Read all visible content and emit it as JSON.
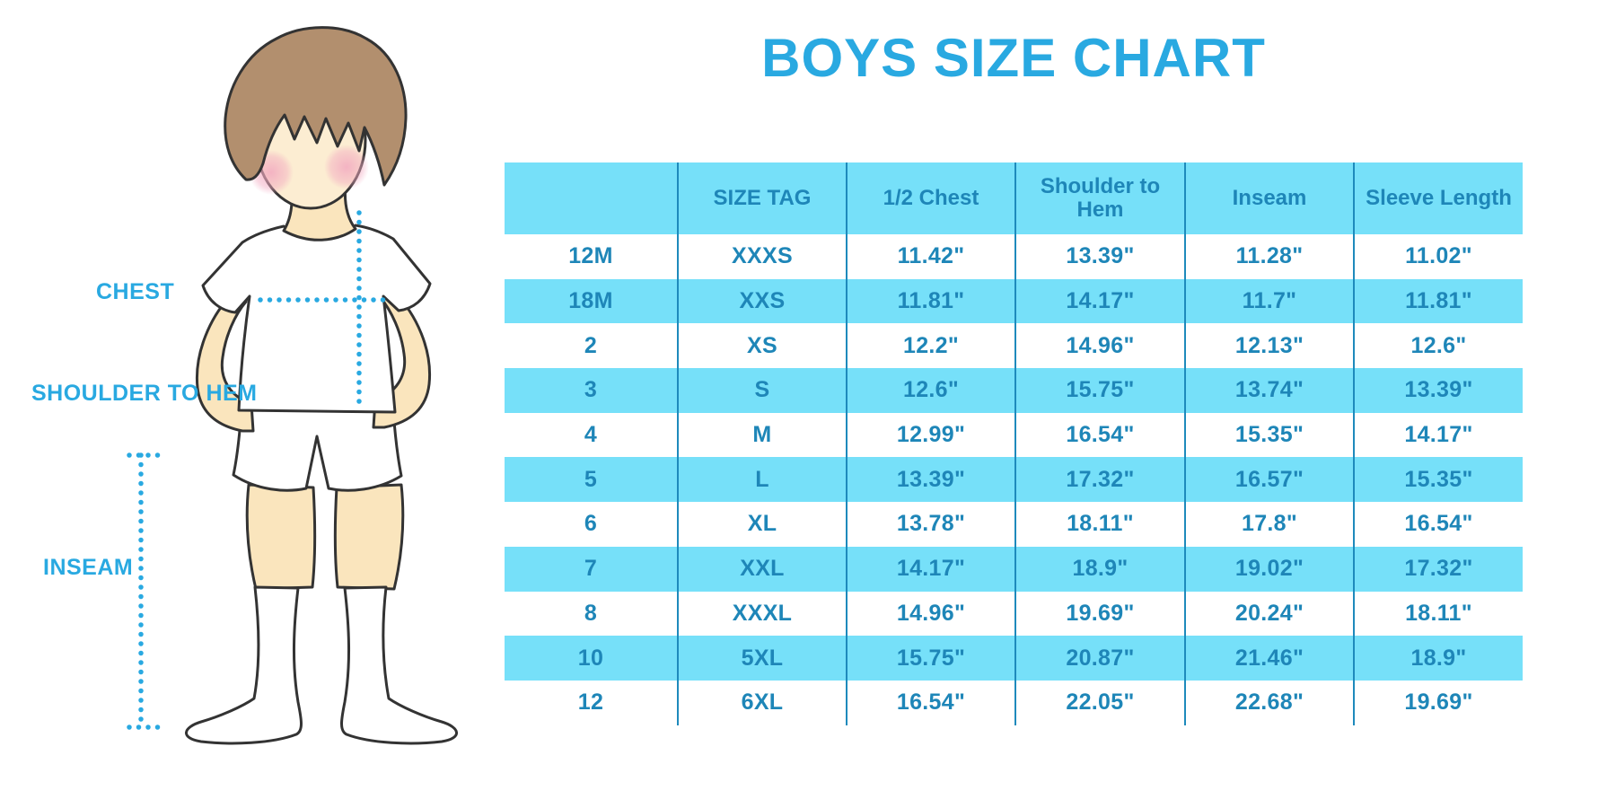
{
  "title": "BOYS SIZE CHART",
  "figure": {
    "labels": {
      "chest": "CHEST",
      "shoulder_to_hem": "SHOULDER TO HEM",
      "inseam": "INSEAM"
    }
  },
  "table": {
    "columns": [
      "",
      "SIZE TAG",
      "1/2 Chest",
      "Shoulder to Hem",
      "Inseam",
      "Sleeve Length"
    ],
    "rows": [
      [
        "12M",
        "XXXS",
        "11.42\"",
        "13.39\"",
        "11.28\"",
        "11.02\""
      ],
      [
        "18M",
        "XXS",
        "11.81\"",
        "14.17\"",
        "11.7\"",
        "11.81\""
      ],
      [
        "2",
        "XS",
        "12.2\"",
        "14.96\"",
        "12.13\"",
        "12.6\""
      ],
      [
        "3",
        "S",
        "12.6\"",
        "15.75\"",
        "13.74\"",
        "13.39\""
      ],
      [
        "4",
        "M",
        "12.99\"",
        "16.54\"",
        "15.35\"",
        "14.17\""
      ],
      [
        "5",
        "L",
        "13.39\"",
        "17.32\"",
        "16.57\"",
        "15.35\""
      ],
      [
        "6",
        "XL",
        "13.78\"",
        "18.11\"",
        "17.8\"",
        "16.54\""
      ],
      [
        "7",
        "XXL",
        "14.17\"",
        "18.9\"",
        "19.02\"",
        "17.32\""
      ],
      [
        "8",
        "XXXL",
        "14.96\"",
        "19.69\"",
        "20.24\"",
        "18.11\""
      ],
      [
        "10",
        "5XL",
        "15.75\"",
        "20.87\"",
        "21.46\"",
        "18.9\""
      ],
      [
        "12",
        "6XL",
        "16.54\"",
        "22.05\"",
        "22.68\"",
        "19.69\""
      ]
    ]
  },
  "colors": {
    "accent_blue": "#29a9e1",
    "stripe_blue": "#76e0f9",
    "table_text": "#1e86b8",
    "divider": "#1e8abc",
    "skin": "#fae5bd",
    "hair": "#b28f6e"
  }
}
